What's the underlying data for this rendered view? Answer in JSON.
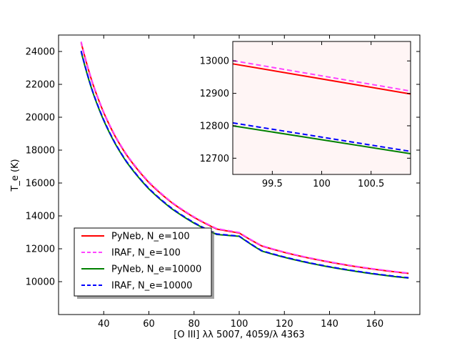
{
  "chart_data": [
    {
      "type": "line",
      "xlabel": "[O III] λλ 5007, 4059/λ 4363",
      "ylabel": "T_e (K)",
      "xlim": [
        20,
        180
      ],
      "ylim": [
        8000,
        25000
      ],
      "xticks": [
        40,
        60,
        80,
        100,
        120,
        140,
        160
      ],
      "yticks": [
        10000,
        12000,
        14000,
        16000,
        18000,
        20000,
        22000,
        24000
      ],
      "xtick_labels": [
        "40",
        "60",
        "80",
        "100",
        "120",
        "140",
        "160"
      ],
      "ytick_labels": [
        "10000",
        "12000",
        "14000",
        "16000",
        "18000",
        "20000",
        "22000",
        "24000"
      ],
      "grid": false,
      "legend_position": "lower-left",
      "x": [
        30,
        35,
        40,
        45,
        50,
        60,
        70,
        80,
        90,
        100,
        110,
        120,
        130,
        140,
        150,
        160,
        170,
        175
      ],
      "series": [
        {
          "name": "PyNeb, N_e=100",
          "color": "#ff0000",
          "dash": "solid",
          "values": [
            24550,
            22100,
            20280,
            18860,
            17730,
            16030,
            14820,
            13910,
            13200,
            12960,
            12170,
            11780,
            11460,
            11190,
            10950,
            10750,
            10580,
            10500
          ]
        },
        {
          "name": "IRAF, N_e=100",
          "color": "#ff44ff",
          "dash": "dashed",
          "values": [
            24600,
            22140,
            20320,
            18900,
            17770,
            16070,
            14850,
            13940,
            13230,
            12990,
            12190,
            11800,
            11480,
            11210,
            10970,
            10770,
            10600,
            10520
          ]
        },
        {
          "name": "PyNeb, N_e=10000",
          "color": "#008000",
          "dash": "solid",
          "values": [
            23990,
            21580,
            19800,
            18410,
            17300,
            15640,
            14450,
            13560,
            12870,
            12760,
            11860,
            11480,
            11160,
            10890,
            10660,
            10460,
            10290,
            10220
          ]
        },
        {
          "name": "IRAF, N_e=10000",
          "color": "#0000ff",
          "dash": "dashed",
          "values": [
            24040,
            21620,
            19840,
            18440,
            17330,
            15670,
            14480,
            13590,
            12900,
            12770,
            11880,
            11500,
            11180,
            10910,
            10680,
            10480,
            10310,
            10240
          ]
        }
      ]
    },
    {
      "type": "line",
      "title": "",
      "xlim": [
        99.1,
        100.9
      ],
      "ylim": [
        12650,
        13060
      ],
      "xticks": [
        99.5,
        100,
        100.5
      ],
      "yticks": [
        12700,
        12800,
        12900,
        13000
      ],
      "xtick_labels": [
        "99.5",
        "100",
        "100.5"
      ],
      "ytick_labels": [
        "12700",
        "12800",
        "12900",
        "13000"
      ],
      "background": "#fff5f5",
      "x": [
        99.1,
        100.9
      ],
      "series": [
        {
          "name": "PyNeb, N_e=100",
          "color": "#ff0000",
          "dash": "solid",
          "values": [
            12991,
            12898
          ]
        },
        {
          "name": "IRAF, N_e=100",
          "color": "#ff44ff",
          "dash": "dashed",
          "values": [
            13001,
            12907
          ]
        },
        {
          "name": "PyNeb, N_e=10000",
          "color": "#008000",
          "dash": "solid",
          "values": [
            12800,
            12714
          ]
        },
        {
          "name": "IRAF, N_e=10000",
          "color": "#0000ff",
          "dash": "dashed",
          "values": [
            12809,
            12721
          ]
        }
      ]
    }
  ],
  "legend": {
    "entries": [
      {
        "label": "PyNeb, N_e=100",
        "color": "#ff0000",
        "dash": "solid"
      },
      {
        "label": "IRAF, N_e=100",
        "color": "#ff44ff",
        "dash": "dashed"
      },
      {
        "label": "PyNeb, N_e=10000",
        "color": "#008000",
        "dash": "solid"
      },
      {
        "label": "IRAF, N_e=10000",
        "color": "#0000ff",
        "dash": "dashed"
      }
    ]
  }
}
